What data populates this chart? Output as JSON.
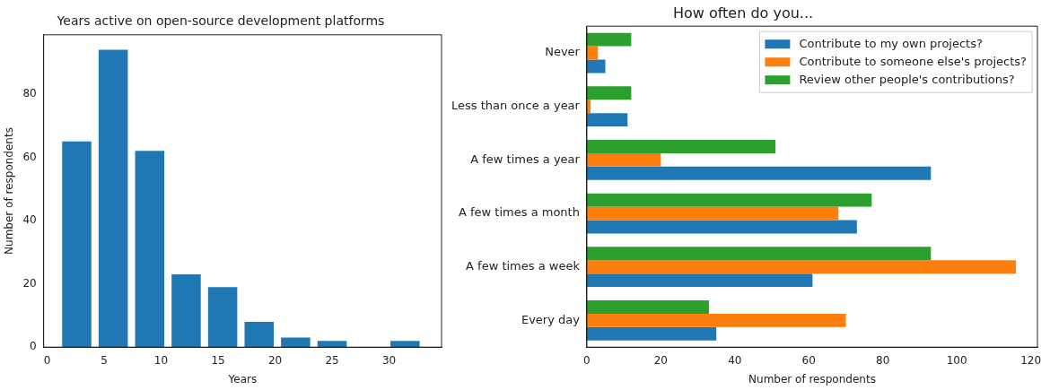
{
  "chart_data": [
    {
      "type": "histogram",
      "title": "Years active on open-source development platforms",
      "xlabel": "Years",
      "ylabel": "Number of respondents",
      "color": "#1f77b4",
      "bins": [
        1,
        4.2,
        7.4,
        10.6,
        13.8,
        17,
        20.2,
        23.4,
        26.6,
        29.8,
        33
      ],
      "values": [
        65,
        94,
        62,
        23,
        19,
        8,
        3,
        2,
        0,
        2
      ],
      "xlim": [
        -0.3,
        34.6
      ],
      "xticks": [
        0,
        5,
        10,
        15,
        20,
        25,
        30
      ],
      "ylim": [
        0,
        98.7
      ],
      "yticks": [
        0,
        20,
        40,
        60,
        80
      ],
      "grid": false
    },
    {
      "type": "bar",
      "orientation": "horizontal",
      "title": "How often do you...",
      "xlabel": "Number of respondents",
      "categories": [
        "Never",
        "Less than once a year",
        "A few times a year",
        "A few times a month",
        "A few times a week",
        "Every day"
      ],
      "series": [
        {
          "name": "Contribute to my own projects?",
          "color": "#1f77b4",
          "values": [
            5,
            11,
            93,
            73,
            61,
            35
          ]
        },
        {
          "name": "Contribute to someone else's projects?",
          "color": "#ff7f0e",
          "values": [
            3,
            1,
            20,
            68,
            116,
            70
          ]
        },
        {
          "name": "Review other people's contributions?",
          "color": "#2ca02c",
          "values": [
            12,
            12,
            51,
            77,
            93,
            33
          ]
        }
      ],
      "xlim": [
        0,
        121.8
      ],
      "xticks": [
        0,
        20,
        40,
        60,
        80,
        100,
        120
      ],
      "grid": false,
      "legend": "top right"
    }
  ]
}
